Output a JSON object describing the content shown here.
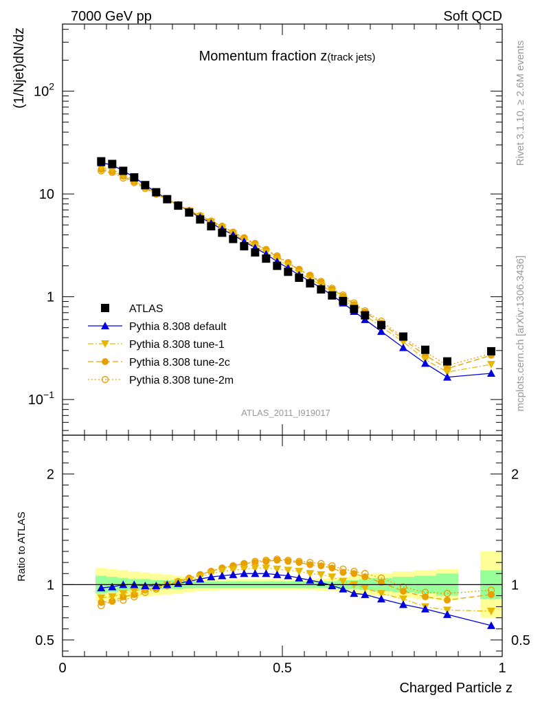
{
  "header": {
    "left": "7000 GeV pp",
    "right": "Soft QCD"
  },
  "side": {
    "upper": "Rivet 3.1.10, ≥ 2.6M events",
    "lower": "mcplots.cern.ch [arXiv:1306.3436]"
  },
  "chart_data": {
    "type": "scatter",
    "title_main": "Momentum fraction ",
    "title_var": "z",
    "title_sub": "(track jets)",
    "analysis_id": "ATLAS_2011_I919017",
    "xlabel": "Charged Particle z",
    "ylabel_top": "(1/Njet)dN/dz",
    "ylabel_ratio": "Ratio to ATLAS",
    "xlim": [
      0,
      1
    ],
    "ylim_top": [
      0.045,
      450
    ],
    "ylog_top": true,
    "ylim_ratio": [
      0.35,
      2.35
    ],
    "x_ticks": [
      {
        "v": 0,
        "label": "0"
      },
      {
        "v": 0.5,
        "label": "0.5"
      },
      {
        "v": 1,
        "label": "1"
      }
    ],
    "y_ticks_top": [
      {
        "v": 0.1,
        "base": "10",
        "exp": "−1"
      },
      {
        "v": 1,
        "base": "1",
        "exp": ""
      },
      {
        "v": 10,
        "base": "10",
        "exp": ""
      },
      {
        "v": 100,
        "base": "10",
        "exp": "2"
      }
    ],
    "y_ticks_ratio": [
      {
        "v": 0.5,
        "label": "0.5"
      },
      {
        "v": 1,
        "label": "1"
      },
      {
        "v": 2,
        "label": "2"
      }
    ],
    "x": [
      0.088,
      0.113,
      0.138,
      0.163,
      0.188,
      0.213,
      0.238,
      0.263,
      0.288,
      0.313,
      0.338,
      0.363,
      0.388,
      0.413,
      0.438,
      0.463,
      0.488,
      0.513,
      0.538,
      0.563,
      0.588,
      0.613,
      0.638,
      0.663,
      0.688,
      0.725,
      0.775,
      0.825,
      0.875,
      0.975
    ],
    "x_edges": [
      0.075,
      0.1,
      0.125,
      0.15,
      0.175,
      0.2,
      0.225,
      0.25,
      0.275,
      0.3,
      0.325,
      0.35,
      0.375,
      0.4,
      0.425,
      0.45,
      0.475,
      0.5,
      0.525,
      0.55,
      0.575,
      0.6,
      0.625,
      0.65,
      0.675,
      0.7,
      0.75,
      0.8,
      0.85,
      0.9,
      0.95,
      1.0
    ],
    "band_edges": [
      0.075,
      0.1,
      0.125,
      0.15,
      0.175,
      0.2,
      0.225,
      0.25,
      0.275,
      0.3,
      0.325,
      0.35,
      0.375,
      0.4,
      0.425,
      0.45,
      0.475,
      0.5,
      0.525,
      0.55,
      0.575,
      0.6,
      0.625,
      0.65,
      0.675,
      0.7,
      0.75,
      0.8,
      0.85,
      0.9
    ],
    "band_green": [
      0.08,
      0.07,
      0.06,
      0.05,
      0.05,
      0.04,
      0.04,
      0.04,
      0.035,
      0.03,
      0.03,
      0.03,
      0.03,
      0.03,
      0.03,
      0.03,
      0.03,
      0.03,
      0.03,
      0.03,
      0.03,
      0.03,
      0.04,
      0.04,
      0.05,
      0.06,
      0.07,
      0.08,
      0.1
    ],
    "band_yellow": [
      0.15,
      0.14,
      0.13,
      0.12,
      0.11,
      0.1,
      0.09,
      0.08,
      0.07,
      0.06,
      0.055,
      0.05,
      0.05,
      0.05,
      0.05,
      0.05,
      0.05,
      0.05,
      0.05,
      0.05,
      0.055,
      0.06,
      0.07,
      0.08,
      0.09,
      0.1,
      0.12,
      0.13,
      0.14
    ],
    "last_band": {
      "x0": 0.95,
      "x1": 1.0,
      "green": 0.13,
      "yellow": 0.3
    },
    "series": [
      {
        "name": "ATLAS",
        "marker": "square",
        "color": "#000000",
        "line": "none",
        "values": [
          20.8,
          19.6,
          16.8,
          14.5,
          12.2,
          10.4,
          8.9,
          7.7,
          6.6,
          5.65,
          4.85,
          4.2,
          3.65,
          3.1,
          2.7,
          2.35,
          2.0,
          1.75,
          1.53,
          1.35,
          1.18,
          1.03,
          0.91,
          0.76,
          0.66,
          0.53,
          0.41,
          0.305,
          0.235,
          0.295
        ],
        "ratio": [
          1,
          1,
          1,
          1,
          1,
          1,
          1,
          1,
          1,
          1,
          1,
          1,
          1,
          1,
          1,
          1,
          1,
          1,
          1,
          1,
          1,
          1,
          1,
          1,
          1,
          1,
          1,
          1,
          1,
          1
        ]
      },
      {
        "name": "Pythia 8.308 default",
        "marker": "triangle-up",
        "color": "#0000dd",
        "line": "solid",
        "values": [
          20.1,
          19.2,
          16.8,
          14.6,
          12.2,
          10.4,
          8.9,
          7.8,
          6.8,
          5.95,
          5.2,
          4.55,
          4.0,
          3.45,
          3.0,
          2.6,
          2.2,
          1.9,
          1.63,
          1.41,
          1.22,
          1.03,
          0.87,
          0.72,
          0.6,
          0.46,
          0.32,
          0.225,
          0.165,
          0.18
        ],
        "ratio": [
          0.97,
          0.98,
          1.0,
          1.0,
          0.99,
          0.99,
          1.0,
          1.01,
          1.03,
          1.05,
          1.07,
          1.08,
          1.09,
          1.1,
          1.1,
          1.1,
          1.09,
          1.08,
          1.06,
          1.04,
          1.02,
          0.99,
          0.96,
          0.92,
          0.91,
          0.87,
          0.82,
          0.78,
          0.73,
          0.63
        ]
      },
      {
        "name": "Pythia 8.308 tune-1",
        "marker": "triangle-down",
        "color": "#e8b800",
        "line": "dashdot",
        "values": [
          18.2,
          17.3,
          15.3,
          13.6,
          11.7,
          10.2,
          8.8,
          7.8,
          6.85,
          6.05,
          5.35,
          4.7,
          4.1,
          3.55,
          3.1,
          2.7,
          2.3,
          2.0,
          1.72,
          1.49,
          1.3,
          1.11,
          0.95,
          0.79,
          0.66,
          0.51,
          0.365,
          0.245,
          0.185,
          0.22
        ],
        "ratio": [
          0.88,
          0.89,
          0.92,
          0.94,
          0.96,
          0.98,
          1.0,
          1.02,
          1.04,
          1.07,
          1.1,
          1.12,
          1.13,
          1.14,
          1.15,
          1.15,
          1.14,
          1.13,
          1.12,
          1.1,
          1.09,
          1.07,
          1.03,
          1.0,
          0.97,
          0.92,
          0.87,
          0.8,
          0.77,
          0.76
        ]
      },
      {
        "name": "Pythia 8.308 tune-2c",
        "marker": "circle",
        "color": "#e8a000",
        "line": "dashed",
        "values": [
          17.4,
          16.6,
          14.9,
          13.2,
          11.6,
          10.1,
          8.9,
          7.9,
          6.95,
          6.15,
          5.45,
          4.85,
          4.25,
          3.7,
          3.25,
          2.85,
          2.45,
          2.12,
          1.83,
          1.6,
          1.38,
          1.18,
          1.01,
          0.84,
          0.71,
          0.555,
          0.385,
          0.27,
          0.2,
          0.27
        ],
        "ratio": [
          0.84,
          0.85,
          0.89,
          0.91,
          0.95,
          0.97,
          1.0,
          1.03,
          1.06,
          1.09,
          1.12,
          1.15,
          1.17,
          1.19,
          1.2,
          1.21,
          1.22,
          1.21,
          1.2,
          1.18,
          1.17,
          1.15,
          1.11,
          1.1,
          1.07,
          1.02,
          0.94,
          0.89,
          0.86,
          0.91
        ]
      },
      {
        "name": "Pythia 8.308 tune-2m",
        "marker": "circle-open",
        "color": "#e8a000",
        "line": "dotted",
        "values": [
          16.8,
          16.2,
          14.3,
          12.9,
          11.3,
          9.95,
          8.75,
          7.8,
          6.9,
          6.15,
          5.45,
          4.85,
          4.25,
          3.75,
          3.3,
          2.88,
          2.5,
          2.15,
          1.85,
          1.62,
          1.41,
          1.21,
          1.04,
          0.87,
          0.73,
          0.58,
          0.4,
          0.29,
          0.215,
          0.28
        ],
        "ratio": [
          0.81,
          0.85,
          0.86,
          0.89,
          0.93,
          0.96,
          0.99,
          1.02,
          1.05,
          1.09,
          1.12,
          1.15,
          1.17,
          1.19,
          1.21,
          1.22,
          1.23,
          1.22,
          1.21,
          1.2,
          1.19,
          1.17,
          1.14,
          1.12,
          1.1,
          1.06,
          0.98,
          0.93,
          0.92,
          0.95
        ]
      }
    ]
  }
}
